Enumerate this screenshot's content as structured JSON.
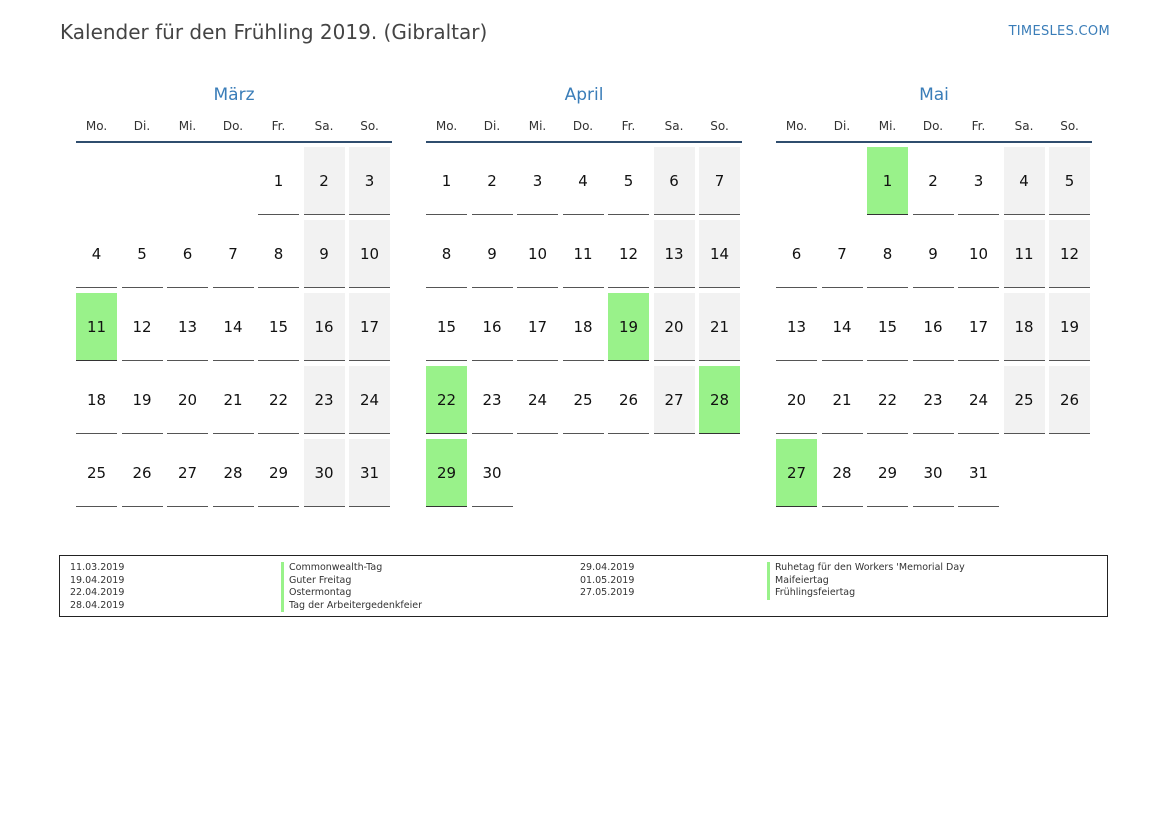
{
  "header": {
    "title": "Kalender für den Frühling 2019. (Gibraltar)",
    "site": "TIMESLES.COM"
  },
  "weekdays": [
    "Mo.",
    "Di.",
    "Mi.",
    "Do.",
    "Fr.",
    "Sa.",
    "So."
  ],
  "months": [
    {
      "name": "März",
      "days": [
        [
          "",
          "",
          "",
          "",
          "1",
          "2",
          "3"
        ],
        [
          "4",
          "5",
          "6",
          "7",
          "8",
          "9",
          "10"
        ],
        [
          "11",
          "12",
          "13",
          "14",
          "15",
          "16",
          "17"
        ],
        [
          "18",
          "19",
          "20",
          "21",
          "22",
          "23",
          "24"
        ],
        [
          "25",
          "26",
          "27",
          "28",
          "29",
          "30",
          "31"
        ]
      ],
      "holidays": [
        "11"
      ]
    },
    {
      "name": "April",
      "days": [
        [
          "1",
          "2",
          "3",
          "4",
          "5",
          "6",
          "7"
        ],
        [
          "8",
          "9",
          "10",
          "11",
          "12",
          "13",
          "14"
        ],
        [
          "15",
          "16",
          "17",
          "18",
          "19",
          "20",
          "21"
        ],
        [
          "22",
          "23",
          "24",
          "25",
          "26",
          "27",
          "28"
        ],
        [
          "29",
          "30",
          "",
          "",
          "",
          "",
          ""
        ]
      ],
      "holidays": [
        "19",
        "22",
        "28",
        "29"
      ]
    },
    {
      "name": "Mai",
      "days": [
        [
          "",
          "",
          "1",
          "2",
          "3",
          "4",
          "5"
        ],
        [
          "6",
          "7",
          "8",
          "9",
          "10",
          "11",
          "12"
        ],
        [
          "13",
          "14",
          "15",
          "16",
          "17",
          "18",
          "19"
        ],
        [
          "20",
          "21",
          "22",
          "23",
          "24",
          "25",
          "26"
        ],
        [
          "27",
          "28",
          "29",
          "30",
          "31",
          "",
          ""
        ]
      ],
      "holidays": [
        "1",
        "27"
      ]
    }
  ],
  "legend": {
    "left": {
      "dates": [
        "11.03.2019",
        "19.04.2019",
        "22.04.2019",
        "28.04.2019"
      ],
      "names": [
        "Commonwealth-Tag",
        "Guter Freitag",
        "Ostermontag",
        "Tag der Arbeitergedenkfeier"
      ]
    },
    "right": {
      "dates": [
        "29.04.2019",
        "01.05.2019",
        "27.05.2019"
      ],
      "names": [
        "Ruhetag für den Workers 'Memorial Day",
        "Maifeiertag",
        "Frühlingsfeiertag"
      ]
    }
  },
  "colors": {
    "holiday": "#99f28a",
    "weekend": "#f2f2f2",
    "accent": "#3a7db8",
    "rule": "#2f4d6e"
  }
}
